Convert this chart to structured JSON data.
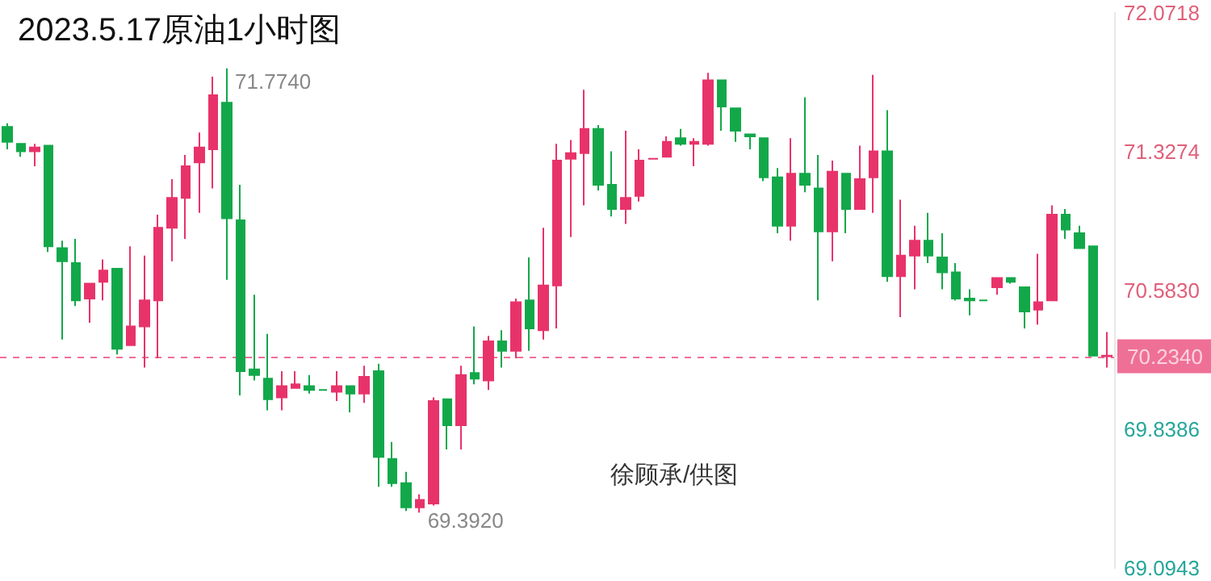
{
  "chart_data": {
    "type": "candlestick",
    "title": "2023.5.17原油1小时图",
    "annotations": [
      "71.7740",
      "69.3920",
      "徐顾承/供图"
    ],
    "categories": [
      null,
      null,
      null,
      null,
      null,
      null,
      null,
      null,
      null,
      null,
      null,
      null,
      null,
      null,
      null,
      null,
      null,
      null,
      null,
      null,
      null,
      null,
      null,
      null,
      null,
      null,
      null,
      null,
      null,
      null,
      null,
      null,
      null,
      null,
      null,
      null,
      null,
      null,
      null,
      null,
      null,
      null,
      null,
      null,
      null,
      null,
      null,
      null,
      null,
      null,
      null,
      null,
      null,
      null,
      null,
      null,
      null,
      null,
      null,
      null,
      null,
      null,
      null,
      null,
      null,
      null,
      null,
      null,
      null,
      null,
      null,
      null,
      null,
      null,
      null,
      null,
      null,
      null,
      null,
      null,
      null
    ],
    "ohlc": [
      [
        71.46,
        71.48,
        71.34,
        71.38
      ],
      [
        71.37,
        71.37,
        71.3,
        71.33
      ],
      [
        71.33,
        71.37,
        71.25,
        71.35
      ],
      [
        71.36,
        71.36,
        70.79,
        70.82
      ],
      [
        70.81,
        70.85,
        70.32,
        70.74
      ],
      [
        70.73,
        70.86,
        70.5,
        70.53
      ],
      [
        70.54,
        70.62,
        70.41,
        70.62
      ],
      [
        70.63,
        70.75,
        70.53,
        70.69
      ],
      [
        70.7,
        70.7,
        70.24,
        70.27
      ],
      [
        70.29,
        70.82,
        70.29,
        70.39
      ],
      [
        70.39,
        70.77,
        70.17,
        70.53
      ],
      [
        70.53,
        70.99,
        70.22,
        70.92
      ],
      [
        70.92,
        71.18,
        70.74,
        71.08
      ],
      [
        71.08,
        71.31,
        70.86,
        71.25
      ],
      [
        71.27,
        71.43,
        71.0,
        71.35
      ],
      [
        71.34,
        71.73,
        71.13,
        71.63
      ],
      [
        71.59,
        71.774,
        70.64,
        70.97
      ],
      [
        70.96,
        71.15,
        70.02,
        70.15
      ],
      [
        70.16,
        70.56,
        70.1,
        70.13
      ],
      [
        70.11,
        70.35,
        69.94,
        70.0
      ],
      [
        70.01,
        70.15,
        69.94,
        70.07
      ],
      [
        70.06,
        70.15,
        70.06,
        70.08
      ],
      [
        70.07,
        70.13,
        70.03,
        70.05
      ],
      [
        70.05,
        70.05,
        70.05,
        70.05
      ],
      [
        70.04,
        70.15,
        69.99,
        70.07
      ],
      [
        70.07,
        70.07,
        69.93,
        70.03
      ],
      [
        70.03,
        70.18,
        69.98,
        70.12
      ],
      [
        70.15,
        70.19,
        69.53,
        69.69
      ],
      [
        69.68,
        69.77,
        69.53,
        69.55
      ],
      [
        69.55,
        69.61,
        69.4,
        69.42
      ],
      [
        69.42,
        69.49,
        69.392,
        69.46
      ],
      [
        69.44,
        70.01,
        69.43,
        69.99
      ],
      [
        70.0,
        70.0,
        69.73,
        69.86
      ],
      [
        69.86,
        70.18,
        69.73,
        70.13
      ],
      [
        70.14,
        70.39,
        70.08,
        70.11
      ],
      [
        70.1,
        70.34,
        70.05,
        70.31
      ],
      [
        70.31,
        70.37,
        70.17,
        70.26
      ],
      [
        70.26,
        70.54,
        70.22,
        70.52
      ],
      [
        70.53,
        70.76,
        70.26,
        70.38
      ],
      [
        70.37,
        70.92,
        70.32,
        70.61
      ],
      [
        70.61,
        71.37,
        70.38,
        71.28
      ],
      [
        71.29,
        71.39,
        70.87,
        71.32
      ],
      [
        71.32,
        71.66,
        71.04,
        71.45
      ],
      [
        71.45,
        71.47,
        71.12,
        71.15
      ],
      [
        71.15,
        71.33,
        70.98,
        71.02
      ],
      [
        71.02,
        71.44,
        70.94,
        71.08
      ],
      [
        71.09,
        71.34,
        71.06,
        71.28
      ],
      [
        71.29,
        71.29,
        71.29,
        71.29
      ],
      [
        71.3,
        71.41,
        71.3,
        71.38
      ],
      [
        71.4,
        71.45,
        71.36,
        71.37
      ],
      [
        71.37,
        71.4,
        71.25,
        71.38
      ],
      [
        71.37,
        71.75,
        71.36,
        71.71
      ],
      [
        71.71,
        71.71,
        71.44,
        71.57
      ],
      [
        71.56,
        71.56,
        71.38,
        71.44
      ],
      [
        71.42,
        71.42,
        71.34,
        71.41
      ],
      [
        71.4,
        71.4,
        71.17,
        71.19
      ],
      [
        71.19,
        71.24,
        70.89,
        70.93
      ],
      [
        70.93,
        71.4,
        70.85,
        71.21
      ],
      [
        71.21,
        71.62,
        71.11,
        71.15
      ],
      [
        71.13,
        71.31,
        70.53,
        70.9
      ],
      [
        70.9,
        71.28,
        70.74,
        71.22
      ],
      [
        71.21,
        71.21,
        70.89,
        71.02
      ],
      [
        71.02,
        71.36,
        71.02,
        71.18
      ],
      [
        71.19,
        71.74,
        71.0,
        71.33
      ],
      [
        71.33,
        71.55,
        70.63,
        70.66
      ],
      [
        70.66,
        71.07,
        70.44,
        70.77
      ],
      [
        70.77,
        70.93,
        70.59,
        70.85
      ],
      [
        70.85,
        71.0,
        70.73,
        70.77
      ],
      [
        70.76,
        70.89,
        70.59,
        70.68
      ],
      [
        70.68,
        70.73,
        70.53,
        70.54
      ],
      [
        70.54,
        70.59,
        70.45,
        70.53
      ],
      [
        70.53,
        70.53,
        70.53,
        70.53
      ],
      [
        70.6,
        70.65,
        70.56,
        70.65
      ],
      [
        70.65,
        70.65,
        70.62,
        70.63
      ],
      [
        70.6,
        70.6,
        70.38,
        70.47
      ],
      [
        70.48,
        70.78,
        70.4,
        70.52
      ],
      [
        70.53,
        71.04,
        70.53,
        70.99
      ],
      [
        70.99,
        71.02,
        70.86,
        70.91
      ],
      [
        70.89,
        70.93,
        70.81,
        70.81
      ],
      [
        70.82,
        70.82,
        70.234,
        70.234
      ],
      [
        70.23,
        70.36,
        70.17,
        70.234
      ]
    ],
    "colors": [
      "#12a84a",
      "#12a84a",
      "#e8336a",
      "#12a84a",
      "#12a84a",
      "#12a84a",
      "#e8336a",
      "#e8336a",
      "#12a84a",
      "#e8336a",
      "#e8336a",
      "#e8336a",
      "#e8336a",
      "#e8336a",
      "#e8336a",
      "#e8336a",
      "#12a84a",
      "#12a84a",
      "#12a84a",
      "#12a84a",
      "#e8336a",
      "#e8336a",
      "#12a84a",
      "#12a84a",
      "#e8336a",
      "#12a84a",
      "#e8336a",
      "#12a84a",
      "#12a84a",
      "#12a84a",
      "#e8336a",
      "#e8336a",
      "#12a84a",
      "#e8336a",
      "#12a84a",
      "#e8336a",
      "#12a84a",
      "#e8336a",
      "#12a84a",
      "#e8336a",
      "#e8336a",
      "#e8336a",
      "#e8336a",
      "#12a84a",
      "#12a84a",
      "#e8336a",
      "#e8336a",
      "#e8336a",
      "#e8336a",
      "#12a84a",
      "#e8336a",
      "#e8336a",
      "#12a84a",
      "#12a84a",
      "#12a84a",
      "#12a84a",
      "#12a84a",
      "#e8336a",
      "#12a84a",
      "#12a84a",
      "#e8336a",
      "#12a84a",
      "#e8336a",
      "#e8336a",
      "#12a84a",
      "#e8336a",
      "#e8336a",
      "#12a84a",
      "#12a84a",
      "#12a84a",
      "#12a84a",
      "#12a84a",
      "#e8336a",
      "#12a84a",
      "#12a84a",
      "#e8336a",
      "#e8336a",
      "#12a84a",
      "#12a84a",
      "#12a84a",
      "#e8336a"
    ],
    "ylim": [
      69.0943,
      72.0718
    ],
    "yticks": [
      {
        "value": 69.0943,
        "label": "69.0943"
      },
      {
        "value": 69.8386,
        "label": "69.8386"
      },
      {
        "value": 70.583,
        "label": "70.5830"
      },
      {
        "value": 71.3274,
        "label": "71.3274"
      },
      {
        "value": 72.0718,
        "label": "72.0718"
      }
    ],
    "ref_lines": [
      {
        "axis": "y",
        "value": 70.234,
        "label": "70.2340",
        "color": "#e8336a",
        "line_style": "dashed"
      }
    ],
    "tick_labels": "y",
    "grid": false
  }
}
